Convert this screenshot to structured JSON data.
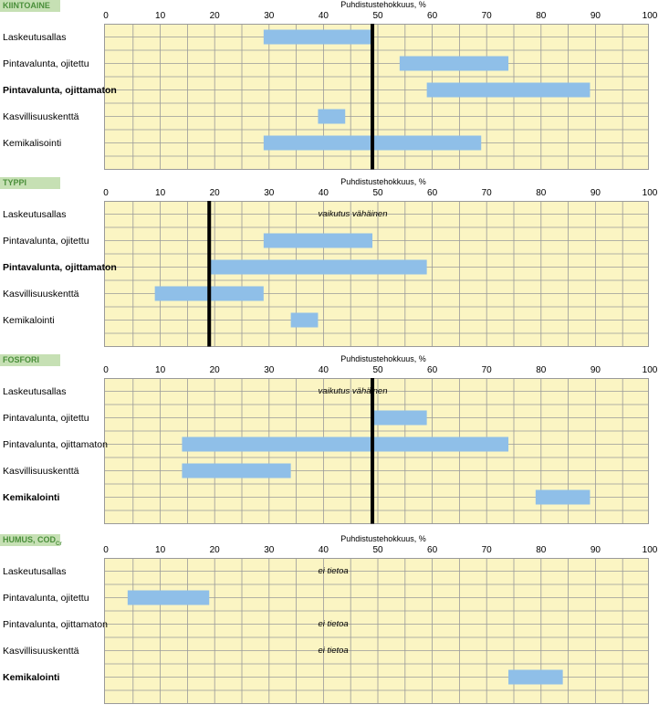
{
  "axis_title": "Puhdistustehokkuus, %",
  "ticks": [
    "0",
    "10",
    "20",
    "30",
    "40",
    "50",
    "60",
    "70",
    "80",
    "90",
    "100"
  ],
  "chart_data": [
    {
      "type": "bar",
      "title": "KIINTOAINE",
      "xlabel": "Puhdistustehokkuus, %",
      "xlim": [
        0,
        100
      ],
      "reference_line": 49,
      "rows": [
        {
          "label": "Laskeutusallas",
          "bold": false,
          "range": [
            29,
            49
          ],
          "note": ""
        },
        {
          "label": "Pintavalunta, ojitettu",
          "bold": false,
          "range": [
            54,
            74
          ],
          "note": ""
        },
        {
          "label": "Pintavalunta, ojittamaton",
          "bold": true,
          "range": [
            59,
            89
          ],
          "note": ""
        },
        {
          "label": "Kasvillisuuskenttä",
          "bold": false,
          "range": [
            39,
            44
          ],
          "note": ""
        },
        {
          "label": "Kemikalisointi",
          "bold": false,
          "range": [
            29,
            69
          ],
          "note": ""
        }
      ]
    },
    {
      "type": "bar",
      "title": "TYPPI",
      "xlabel": "Puhdistustehokkuus, %",
      "xlim": [
        0,
        100
      ],
      "reference_line": 19,
      "rows": [
        {
          "label": "Laskeutusallas",
          "bold": false,
          "range": null,
          "note": "vaikutus vähäinen"
        },
        {
          "label": "Pintavalunta, ojitettu",
          "bold": false,
          "range": [
            29,
            49
          ],
          "note": ""
        },
        {
          "label": "Pintavalunta, ojittamaton",
          "bold": true,
          "range": [
            19,
            59
          ],
          "note": ""
        },
        {
          "label": "Kasvillisuuskenttä",
          "bold": false,
          "range": [
            9,
            29
          ],
          "note": ""
        },
        {
          "label": "Kemikalointi",
          "bold": false,
          "range": [
            34,
            39
          ],
          "note": ""
        }
      ]
    },
    {
      "type": "bar",
      "title": "FOSFORI",
      "xlabel": "Puhdistustehokkuus, %",
      "xlim": [
        0,
        100
      ],
      "reference_line": 49,
      "rows": [
        {
          "label": "Laskeutusallas",
          "bold": false,
          "range": null,
          "note": "vaikutus vähäinen"
        },
        {
          "label": "Pintavalunta, ojitettu",
          "bold": false,
          "range": [
            49,
            59
          ],
          "note": ""
        },
        {
          "label": "Pintavalunta, ojittamaton",
          "bold": false,
          "range": [
            14,
            74
          ],
          "note": ""
        },
        {
          "label": "Kasvillisuuskenttä",
          "bold": false,
          "range": [
            14,
            34
          ],
          "note": ""
        },
        {
          "label": "Kemikalointi",
          "bold": true,
          "range": [
            79,
            89
          ],
          "note": ""
        }
      ]
    },
    {
      "type": "bar",
      "title": "HUMUS, COD",
      "title_sub": "Cr",
      "xlabel": "Puhdistustehokkuus, %",
      "xlim": [
        0,
        100
      ],
      "reference_line": null,
      "rows": [
        {
          "label": "Laskeutusallas",
          "bold": false,
          "range": null,
          "note": "ei tietoa"
        },
        {
          "label": "Pintavalunta, ojitettu",
          "bold": false,
          "range": [
            4,
            19
          ],
          "note": ""
        },
        {
          "label": "Pintavalunta, ojittamaton",
          "bold": false,
          "range": null,
          "note": "ei tietoa"
        },
        {
          "label": "Kasvillisuuskenttä",
          "bold": false,
          "range": null,
          "note": "ei tietoa"
        },
        {
          "label": "Kemikalointi",
          "bold": true,
          "range": [
            74,
            84
          ],
          "note": ""
        }
      ]
    }
  ],
  "colors": {
    "bar": "#8fbfe8",
    "grid_bg": "#fbf5c3",
    "grid_line": "#9a9a9a",
    "ref_line": "#000000",
    "badge_bg": "#c6e0b4",
    "badge_text": "#4a8f3a"
  }
}
